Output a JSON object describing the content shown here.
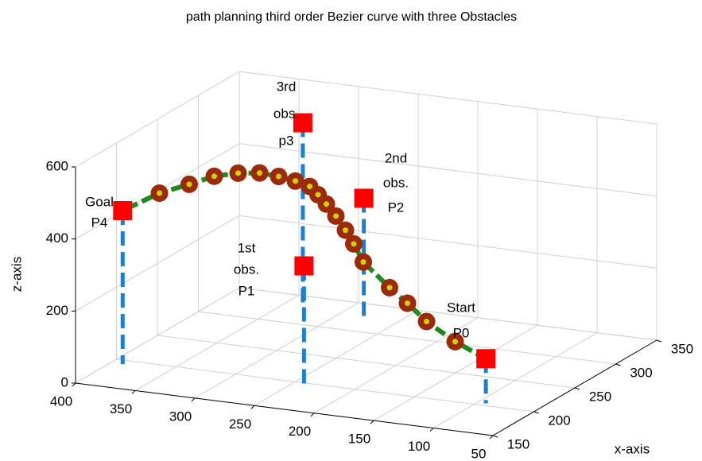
{
  "chart_data": {
    "type": "scatter3d",
    "title": "path planning third order  Bezier curve with three Obstacles",
    "xlabel": "x-axis",
    "zlabel": "z-axis",
    "xlim": [
      150,
      350
    ],
    "ylim": [
      50,
      400
    ],
    "zlim": [
      0,
      600
    ],
    "xticks": [
      150,
      200,
      250,
      300,
      350
    ],
    "yticks": [
      50,
      100,
      150,
      200,
      250,
      300,
      350,
      400
    ],
    "zticks": [
      0,
      200,
      400,
      600
    ],
    "grid": true,
    "control_points": {
      "x": [
        204,
        196,
        320,
        330,
        193
      ],
      "y": [
        93,
        240,
        275,
        333,
        390
      ],
      "z": [
        124,
        331,
        340,
        512,
        426
      ],
      "color": "#ff0000",
      "stem_color": "#1e7fd0"
    },
    "curve": {
      "x": [
        200,
        200,
        200,
        200,
        200,
        200,
        200,
        200,
        200,
        200,
        200,
        200,
        200,
        200,
        200,
        200,
        200,
        200
      ],
      "y": [
        116,
        140,
        156,
        171,
        193,
        201,
        208,
        216,
        224,
        231,
        238,
        250,
        264,
        280,
        298,
        318,
        339,
        364
      ],
      "z": [
        167,
        213,
        257,
        294,
        356,
        403,
        438,
        474,
        504,
        527,
        547,
        557,
        564,
        567,
        559,
        542,
        511,
        476
      ],
      "line_color": "#1f8a1f",
      "marker_color": "#9a2a08",
      "center_color": "#d4d000"
    },
    "annotations": [
      [
        "Start",
        "P0"
      ],
      [
        "1st",
        "obs.",
        "P1"
      ],
      [
        "2nd",
        "obs.",
        "P2"
      ],
      [
        "3rd",
        "obs.",
        "p3"
      ],
      [
        "Goal",
        "P4"
      ]
    ]
  }
}
